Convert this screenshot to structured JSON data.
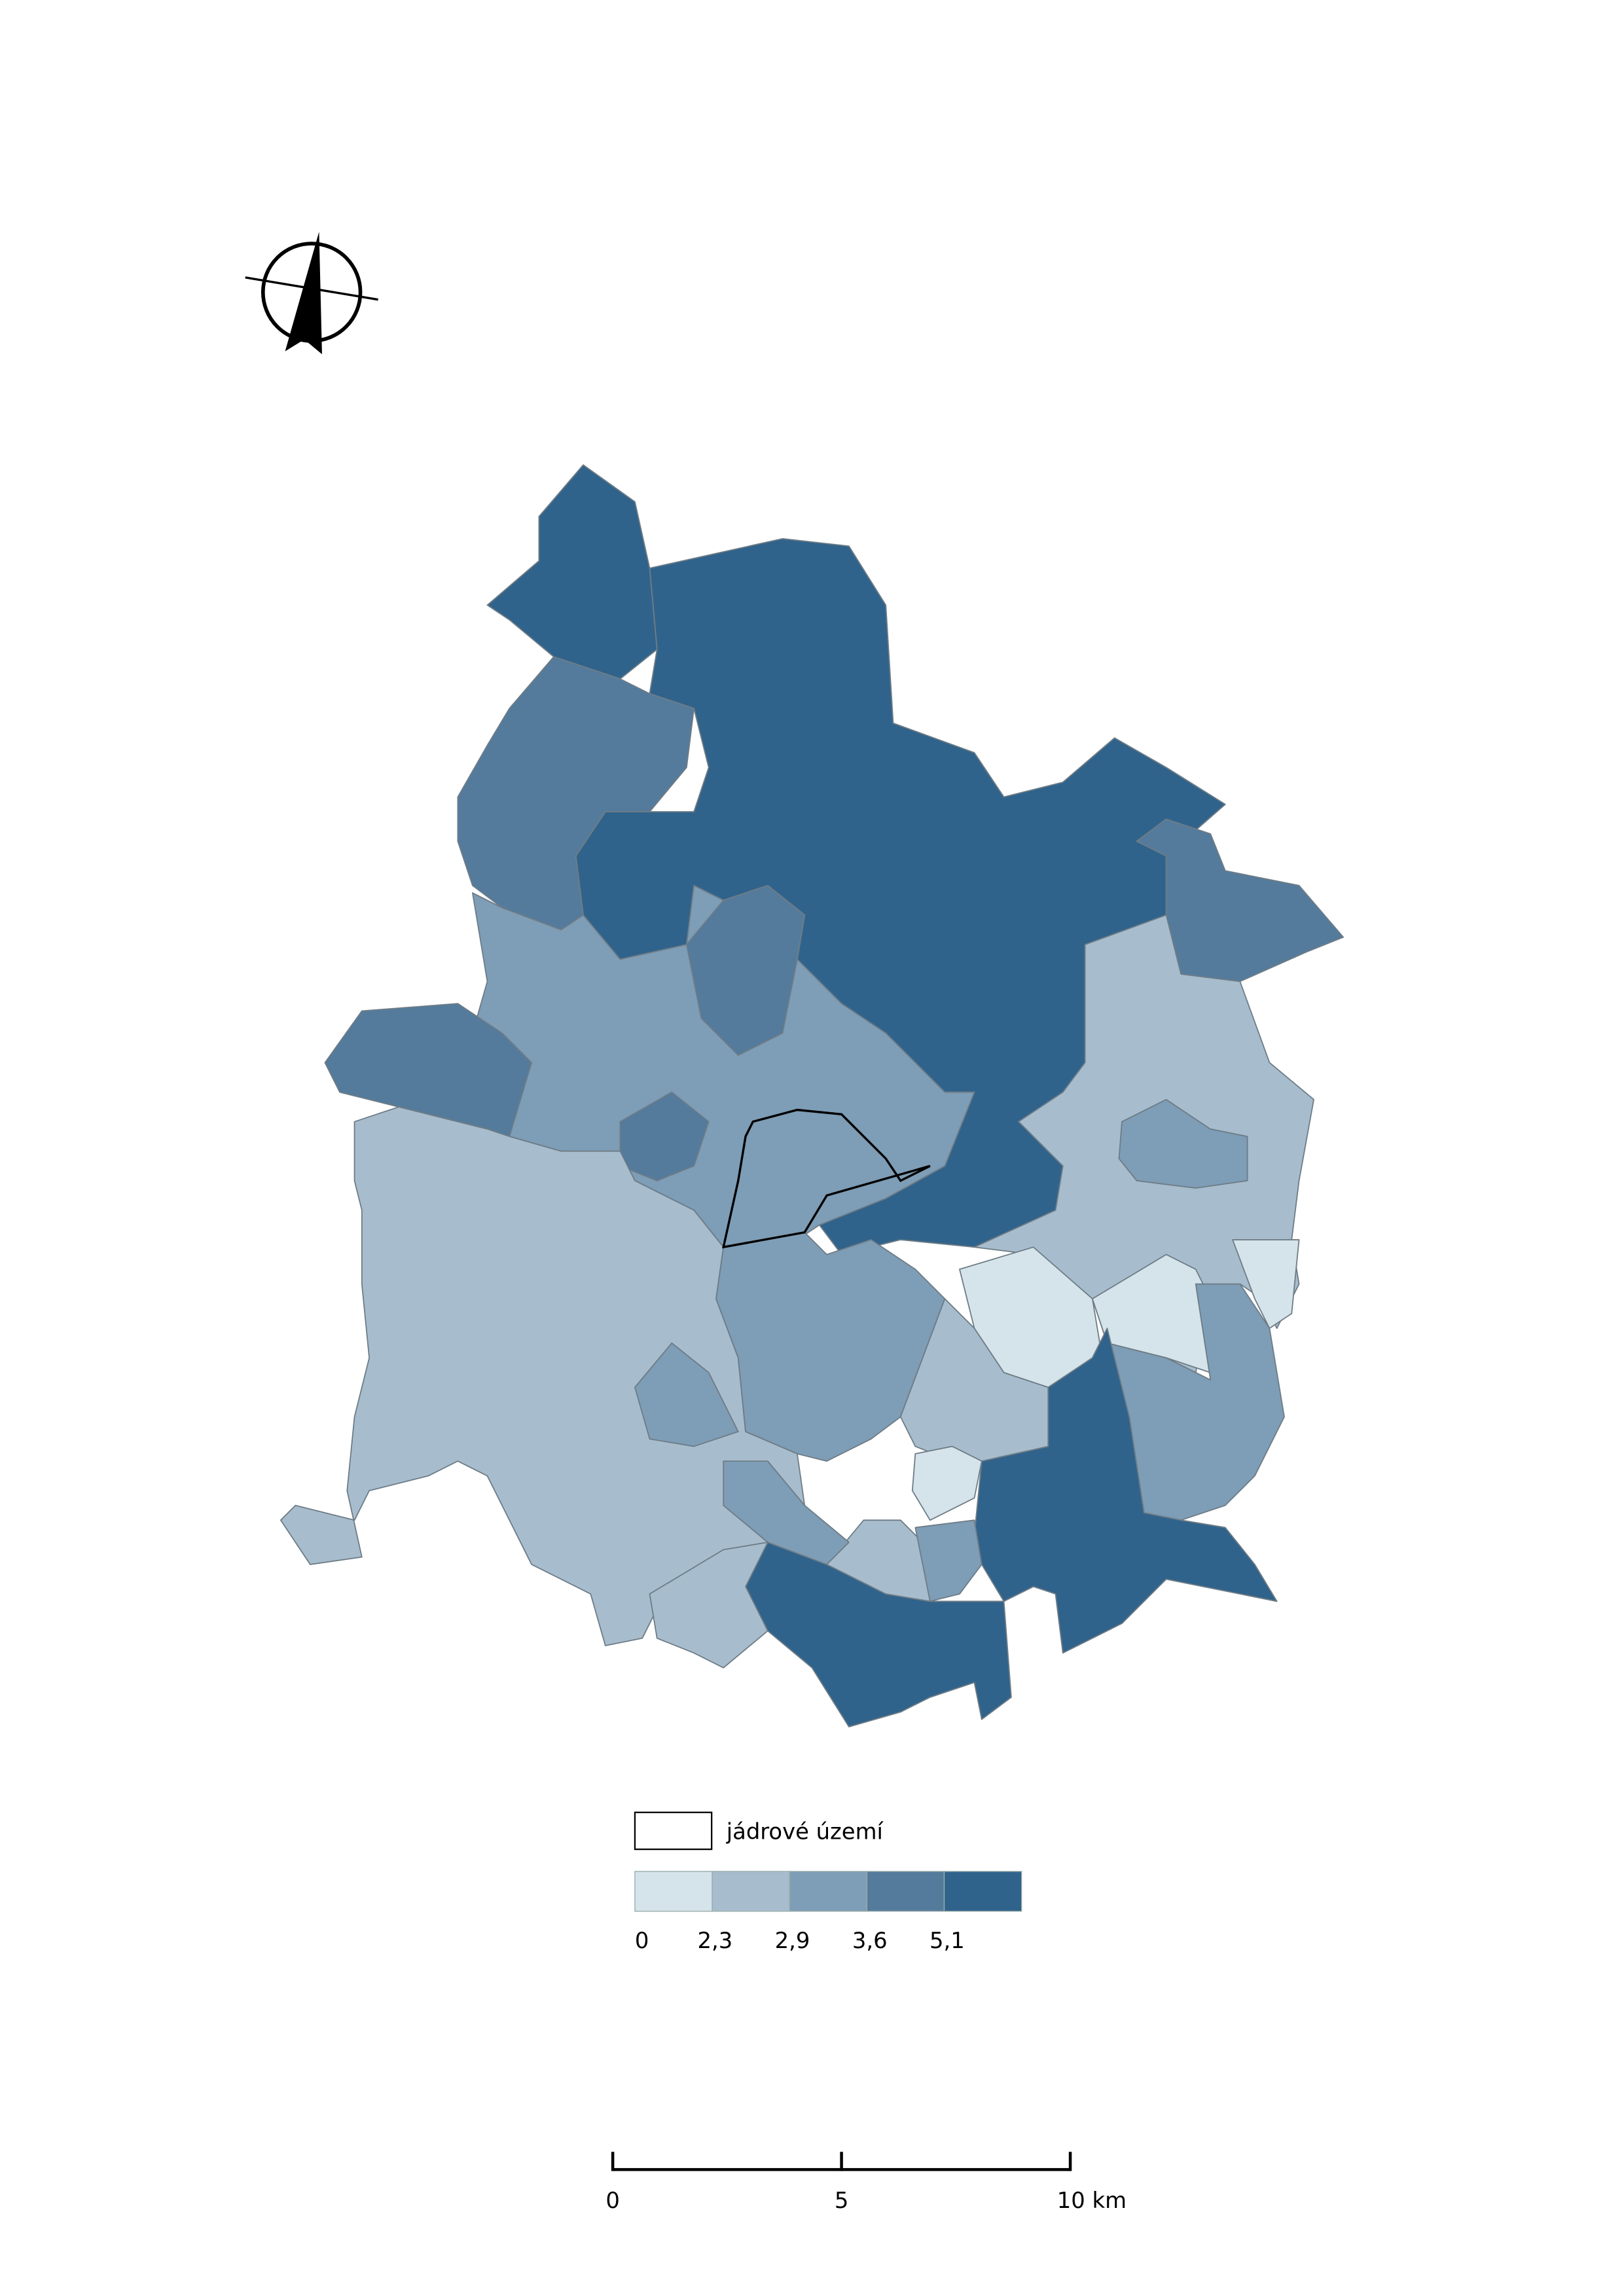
{
  "legend": {
    "core_label": "jádrové území",
    "classes": [
      "#d5e4ea",
      "#a7bdcd",
      "#7e9db6",
      "#547b9c",
      "#30638b"
    ],
    "breaks": [
      "0",
      "2,3",
      "2,9",
      "3,6",
      "5,1"
    ]
  },
  "scale_bar": {
    "labels": [
      "0",
      "5",
      "10 km"
    ]
  }
}
